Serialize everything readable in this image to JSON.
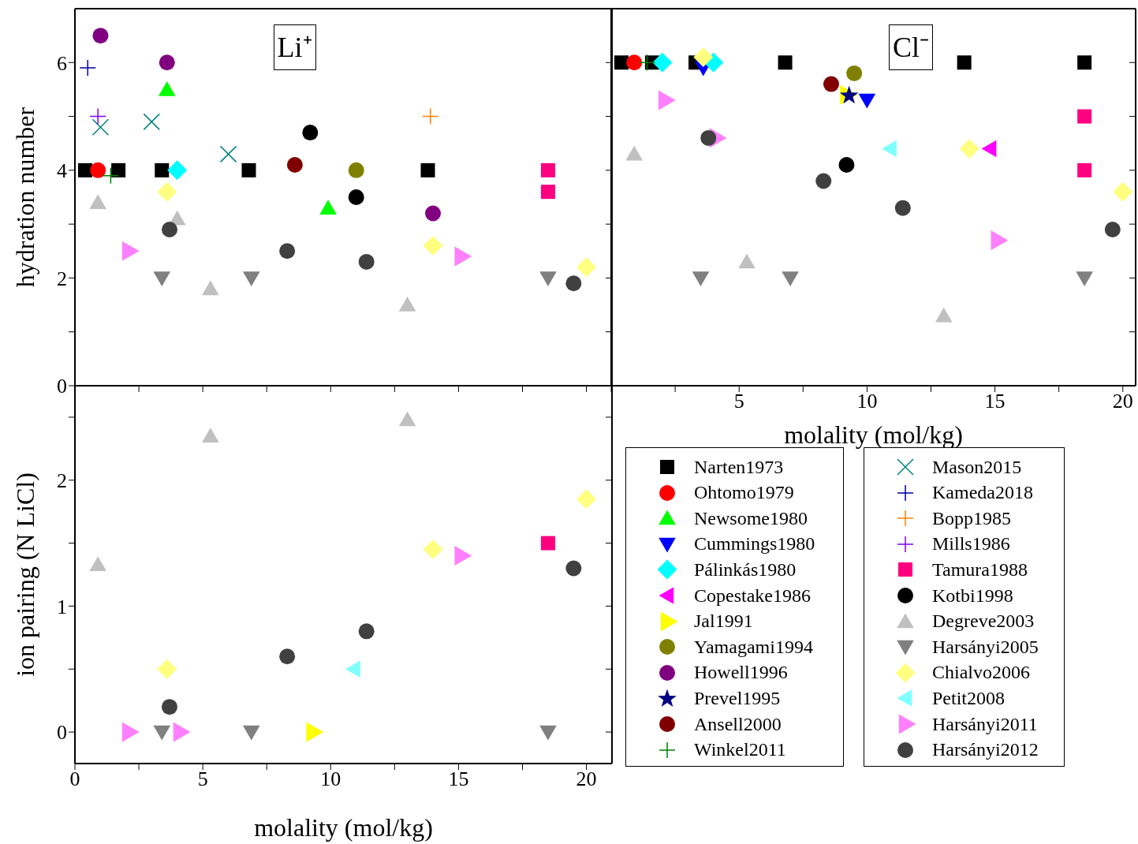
{
  "chart_data": [
    {
      "type": "scatter",
      "ylabel": "hydration number",
      "annotations": [
        "Li⁺"
      ],
      "xlim": [
        0,
        21
      ],
      "ylim": [
        0,
        7
      ],
      "xticks": [
        0,
        {
          "value": 2.5,
          "label": null
        },
        5,
        {
          "value": 7.5,
          "label": null
        },
        10,
        {
          "value": 12.5,
          "label": null
        },
        15,
        {
          "value": 17.5,
          "label": null
        },
        20
      ],
      "yticks": [
        0,
        {
          "value": 1,
          "label": null
        },
        2,
        {
          "value": 3,
          "label": null
        },
        4,
        {
          "value": 5,
          "label": null
        },
        6
      ],
      "tick_labels": "y",
      "legend": "bottom right",
      "series": [
        {
          "name": "Narten1973",
          "color": "#000000",
          "marker": "square",
          "x": [
            0.4,
            1.7,
            3.4,
            6.8,
            13.8
          ],
          "values": [
            4,
            4,
            4,
            4,
            4
          ]
        },
        {
          "name": "Ohtomo1979",
          "color": "#ff0000",
          "marker": "circle",
          "x": [
            0.9
          ],
          "values": [
            4
          ]
        },
        {
          "name": "Newsome1980",
          "color": "#00ff00",
          "marker": "triangle",
          "x": [
            3.6,
            9.9
          ],
          "values": [
            5.5,
            3.3
          ]
        },
        {
          "name": "Pálinkás1980",
          "color": "#00ffff",
          "marker": "diamond",
          "x": [
            4.0
          ],
          "values": [
            4
          ]
        },
        {
          "name": "Yamagami1994",
          "color": "#808000",
          "marker": "circle",
          "x": [
            11.0
          ],
          "values": [
            4
          ]
        },
        {
          "name": "Howell1996",
          "color": "#800080",
          "marker": "circle",
          "x": [
            1.0,
            3.6,
            14.0
          ],
          "values": [
            6.5,
            6.0,
            3.2
          ]
        },
        {
          "name": "Ansell2000",
          "color": "#800000",
          "marker": "circle",
          "x": [
            8.6
          ],
          "values": [
            4.1
          ]
        },
        {
          "name": "Winkel2011",
          "color": "#008000",
          "marker": "cross",
          "x": [
            1.4
          ],
          "values": [
            3.9
          ]
        },
        {
          "name": "Mason2015",
          "color": "#008080",
          "marker": "x",
          "x": [
            1.0,
            3.0,
            6.0
          ],
          "values": [
            4.8,
            4.9,
            4.3
          ]
        },
        {
          "name": "Kameda2018",
          "color": "#0000a0",
          "marker": "cross",
          "x": [
            0.5
          ],
          "values": [
            5.9
          ]
        },
        {
          "name": "Bopp1985",
          "color": "#ff8000",
          "marker": "cross",
          "x": [
            13.9
          ],
          "values": [
            5.0
          ]
        },
        {
          "name": "Mills1986",
          "color": "#8000ff",
          "marker": "cross",
          "x": [
            0.9
          ],
          "values": [
            5.0
          ]
        },
        {
          "name": "Tamura1988",
          "color": "#ff0080",
          "marker": "square",
          "x": [
            18.5,
            18.5
          ],
          "values": [
            4.0,
            3.6
          ]
        },
        {
          "name": "Kotbi1998",
          "color": "#000000",
          "marker": "circle",
          "x": [
            9.2,
            11.0
          ],
          "values": [
            4.7,
            3.5
          ]
        },
        {
          "name": "Degreve2003",
          "color": "#c0c0c0",
          "marker": "triangle",
          "x": [
            0.9,
            4.0,
            5.3,
            13.0
          ],
          "values": [
            3.4,
            3.1,
            1.8,
            1.5
          ]
        },
        {
          "name": "Harsányi2005",
          "color": "#808080",
          "marker": "triangle-down",
          "x": [
            3.4,
            6.9,
            18.5
          ],
          "values": [
            2,
            2,
            2
          ]
        },
        {
          "name": "Chialvo2006",
          "color": "#ffff80",
          "marker": "diamond",
          "x": [
            3.6,
            14.0,
            20.0
          ],
          "values": [
            3.6,
            2.6,
            2.2
          ]
        },
        {
          "name": "Harsányi2011",
          "color": "#ff80ff",
          "marker": "triangle-right",
          "x": [
            2.1,
            15.1
          ],
          "values": [
            2.5,
            2.4
          ]
        },
        {
          "name": "Harsányi2012",
          "color": "#404040",
          "marker": "circle",
          "x": [
            3.7,
            8.3,
            11.4,
            19.5
          ],
          "values": [
            2.9,
            2.5,
            2.3,
            1.9
          ]
        }
      ]
    },
    {
      "type": "scatter",
      "xlabel": "molality (mol/kg)",
      "annotations": [
        "Cl⁻"
      ],
      "xlim": [
        0,
        20.5
      ],
      "ylim": [
        0,
        7
      ],
      "xticks": [
        {
          "value": 0,
          "label": null
        },
        {
          "value": 2.5,
          "label": null
        },
        5,
        {
          "value": 7.5,
          "label": null
        },
        10,
        {
          "value": 12.5,
          "label": null
        },
        15,
        {
          "value": 17.5,
          "label": null
        },
        20
      ],
      "yticks": [
        {
          "value": 0,
          "label": null
        },
        {
          "value": 1,
          "label": null
        },
        {
          "value": 2,
          "label": null
        },
        {
          "value": 3,
          "label": null
        },
        {
          "value": 4,
          "label": null
        },
        {
          "value": 5,
          "label": null
        },
        {
          "value": 6,
          "label": null
        }
      ],
      "tick_labels": "x",
      "legend": "bottom",
      "series": [
        {
          "name": "Narten1973",
          "color": "#000000",
          "marker": "square",
          "x": [
            0.4,
            1.6,
            3.3,
            6.8,
            13.8,
            18.5
          ],
          "values": [
            6,
            6,
            6,
            6,
            6,
            6
          ]
        },
        {
          "name": "Ohtomo1979",
          "color": "#ff0000",
          "marker": "circle",
          "x": [
            0.9
          ],
          "values": [
            6
          ]
        },
        {
          "name": "Cummings1980",
          "color": "#0000ff",
          "marker": "triangle-down",
          "x": [
            3.6,
            10.0
          ],
          "values": [
            5.9,
            5.3
          ]
        },
        {
          "name": "Pálinkás1980",
          "color": "#00ffff",
          "marker": "diamond",
          "x": [
            2.0,
            4.0
          ],
          "values": [
            6,
            6
          ]
        },
        {
          "name": "Copestake1986",
          "color": "#ff00ff",
          "marker": "triangle-left",
          "x": [
            14.8
          ],
          "values": [
            4.4
          ]
        },
        {
          "name": "Jal1991",
          "color": "#ffff00",
          "marker": "triangle-right",
          "x": [
            9.2
          ],
          "values": [
            5.4
          ]
        },
        {
          "name": "Yamagami1994",
          "color": "#808000",
          "marker": "circle",
          "x": [
            9.5
          ],
          "values": [
            5.8
          ]
        },
        {
          "name": "Prevel1995",
          "color": "#000080",
          "marker": "star",
          "x": [
            9.3
          ],
          "values": [
            5.4
          ]
        },
        {
          "name": "Ansell2000",
          "color": "#800000",
          "marker": "circle",
          "x": [
            8.6
          ],
          "values": [
            5.6
          ]
        },
        {
          "name": "Winkel2011",
          "color": "#008000",
          "marker": "cross",
          "x": [
            1.4
          ],
          "values": [
            6
          ]
        },
        {
          "name": "Tamura1988",
          "color": "#ff0080",
          "marker": "square",
          "x": [
            18.5,
            18.5
          ],
          "values": [
            5,
            4
          ]
        },
        {
          "name": "Kotbi1998",
          "color": "#000000",
          "marker": "circle",
          "x": [
            9.2
          ],
          "values": [
            4.1
          ]
        },
        {
          "name": "Degreve2003",
          "color": "#c0c0c0",
          "marker": "triangle",
          "x": [
            0.9,
            5.3,
            13.0
          ],
          "values": [
            4.3,
            2.3,
            1.3
          ]
        },
        {
          "name": "Harsányi2005",
          "color": "#808080",
          "marker": "triangle-down",
          "x": [
            3.5,
            7.0,
            18.5
          ],
          "values": [
            2,
            2,
            2
          ]
        },
        {
          "name": "Chialvo2006",
          "color": "#ffff80",
          "marker": "diamond",
          "x": [
            3.6,
            14.0,
            20.0
          ],
          "values": [
            6.1,
            4.4,
            3.6
          ]
        },
        {
          "name": "Petit2008",
          "color": "#80ffff",
          "marker": "triangle-left",
          "x": [
            10.9
          ],
          "values": [
            4.4
          ]
        },
        {
          "name": "Harsányi2011",
          "color": "#ff80ff",
          "marker": "triangle-right",
          "x": [
            2.1,
            4.1,
            15.1
          ],
          "values": [
            5.3,
            4.6,
            2.7
          ]
        },
        {
          "name": "Harsányi2012",
          "color": "#404040",
          "marker": "circle",
          "x": [
            3.8,
            8.3,
            11.4,
            19.6
          ],
          "values": [
            4.6,
            3.8,
            3.3,
            2.9
          ]
        }
      ]
    },
    {
      "type": "scatter",
      "xlabel": "molality (mol/kg)",
      "ylabel": "ion pairing (N LiCl)",
      "xlim": [
        0,
        21
      ],
      "ylim": [
        -0.25,
        2.75
      ],
      "xticks": [
        0,
        {
          "value": 2.5,
          "label": null
        },
        5,
        {
          "value": 7.5,
          "label": null
        },
        10,
        {
          "value": 12.5,
          "label": null
        },
        15,
        {
          "value": 17.5,
          "label": null
        },
        20
      ],
      "yticks": [
        0,
        {
          "value": 0.5,
          "label": null
        },
        1,
        {
          "value": 1.5,
          "label": null
        },
        2,
        {
          "value": 2.5,
          "label": null
        }
      ],
      "series": [
        {
          "name": "Jal1991",
          "color": "#ffff00",
          "marker": "triangle-right",
          "x": [
            9.3
          ],
          "values": [
            0
          ]
        },
        {
          "name": "Tamura1988",
          "color": "#ff0080",
          "marker": "square",
          "x": [
            18.5
          ],
          "values": [
            1.5
          ]
        },
        {
          "name": "Degreve2003",
          "color": "#c0c0c0",
          "marker": "triangle",
          "x": [
            0.9,
            5.3,
            13.0
          ],
          "values": [
            1.33,
            2.35,
            2.48
          ]
        },
        {
          "name": "Harsányi2005",
          "color": "#808080",
          "marker": "triangle-down",
          "x": [
            3.4,
            6.9,
            18.5
          ],
          "values": [
            0,
            0,
            0
          ]
        },
        {
          "name": "Chialvo2006",
          "color": "#ffff80",
          "marker": "diamond",
          "x": [
            3.6,
            14.0,
            20.0
          ],
          "values": [
            0.5,
            1.45,
            1.85
          ]
        },
        {
          "name": "Petit2008",
          "color": "#80ffff",
          "marker": "triangle-left",
          "x": [
            10.9
          ],
          "values": [
            0.5
          ]
        },
        {
          "name": "Harsányi2011",
          "color": "#ff80ff",
          "marker": "triangle-right",
          "x": [
            2.1,
            4.1,
            15.1
          ],
          "values": [
            0,
            0,
            1.4
          ]
        },
        {
          "name": "Harsányi2012",
          "color": "#404040",
          "marker": "circle",
          "x": [
            3.7,
            8.3,
            11.4,
            19.5
          ],
          "values": [
            0.2,
            0.6,
            0.8,
            1.3
          ]
        }
      ]
    }
  ]
}
